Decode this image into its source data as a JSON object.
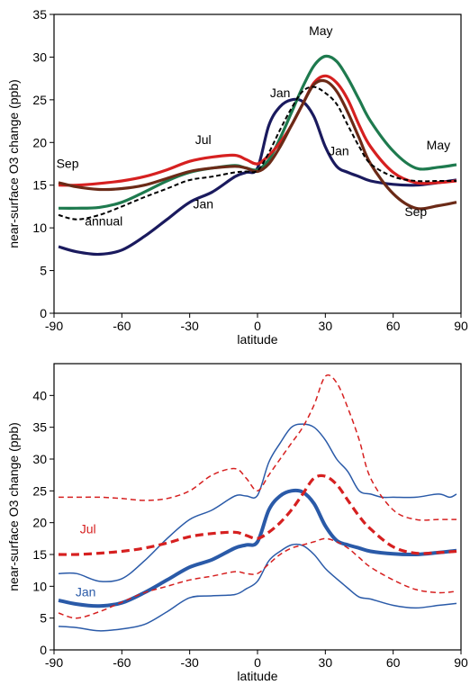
{
  "chart_data": [
    {
      "type": "line",
      "xlabel": "latitude",
      "ylabel": "near-surface O3 change  (ppb)",
      "xlim": [
        -90,
        90
      ],
      "ylim": [
        0,
        35
      ],
      "xticks": [
        "-90",
        "-60",
        "-30",
        "0",
        "30",
        "60",
        "90"
      ],
      "yticks": [
        "0",
        "5",
        "10",
        "15",
        "20",
        "25",
        "30",
        "35"
      ],
      "grid": false,
      "series": [
        {
          "color": "#1a1a5e",
          "width": 3.2,
          "dash": "",
          "x": [
            -88,
            -80,
            -70,
            -60,
            -50,
            -40,
            -30,
            -20,
            -10,
            -5,
            0,
            5,
            10,
            15,
            20,
            25,
            30,
            35,
            40,
            45,
            50,
            60,
            70,
            80,
            88
          ],
          "y": [
            7.8,
            7.2,
            6.9,
            7.4,
            9.0,
            11.0,
            13.0,
            14.2,
            16.0,
            16.5,
            17.0,
            22.0,
            24.2,
            25.0,
            24.8,
            23.0,
            19.5,
            17.2,
            16.5,
            16.0,
            15.5,
            15.1,
            15.0,
            15.3,
            15.6
          ]
        },
        {
          "color": "#1e7a4e",
          "width": 3.2,
          "dash": "",
          "x": [
            -88,
            -80,
            -70,
            -60,
            -50,
            -40,
            -30,
            -20,
            -10,
            -5,
            0,
            5,
            10,
            15,
            20,
            25,
            30,
            35,
            40,
            45,
            50,
            60,
            70,
            80,
            88
          ],
          "y": [
            12.3,
            12.3,
            12.4,
            13.0,
            14.2,
            15.5,
            16.5,
            17.0,
            17.3,
            17.0,
            16.8,
            18.0,
            20.5,
            23.5,
            26.5,
            29.0,
            30.1,
            29.5,
            27.5,
            25.0,
            22.5,
            19.0,
            17.0,
            17.1,
            17.4
          ]
        },
        {
          "color": "#d62020",
          "width": 3.2,
          "dash": "",
          "x": [
            -88,
            -80,
            -70,
            -60,
            -50,
            -40,
            -30,
            -20,
            -10,
            -5,
            0,
            5,
            10,
            15,
            20,
            25,
            30,
            35,
            40,
            45,
            50,
            60,
            70,
            80,
            88
          ],
          "y": [
            15.0,
            15.0,
            15.2,
            15.5,
            16.0,
            16.8,
            17.8,
            18.3,
            18.5,
            18.0,
            17.5,
            18.5,
            20.0,
            22.0,
            24.5,
            27.0,
            27.8,
            27.0,
            25.0,
            22.0,
            19.5,
            16.5,
            15.3,
            15.3,
            15.5
          ]
        },
        {
          "color": "#6b2a17",
          "width": 3.2,
          "dash": "",
          "x": [
            -88,
            -80,
            -70,
            -60,
            -50,
            -40,
            -30,
            -20,
            -10,
            -5,
            0,
            5,
            10,
            15,
            20,
            25,
            30,
            35,
            40,
            45,
            50,
            60,
            70,
            80,
            88
          ],
          "y": [
            15.3,
            14.8,
            14.5,
            14.6,
            15.0,
            15.8,
            16.6,
            17.0,
            17.2,
            17.0,
            16.6,
            17.5,
            19.5,
            22.0,
            24.5,
            26.8,
            27.2,
            26.0,
            23.5,
            20.5,
            17.5,
            14.0,
            12.3,
            12.6,
            13.0
          ]
        },
        {
          "name": "annual",
          "color": "#000000",
          "width": 2.0,
          "dash": "5,3",
          "x": [
            -88,
            -80,
            -70,
            -60,
            -50,
            -40,
            -30,
            -20,
            -10,
            -5,
            0,
            5,
            10,
            15,
            20,
            25,
            30,
            35,
            40,
            45,
            50,
            60,
            70,
            80,
            88
          ],
          "y": [
            11.5,
            11.0,
            11.5,
            12.5,
            13.6,
            14.6,
            15.6,
            16.0,
            16.5,
            16.6,
            16.7,
            18.8,
            21.5,
            24.0,
            26.0,
            26.5,
            25.8,
            24.5,
            22.0,
            19.5,
            17.5,
            16.0,
            15.5,
            15.5,
            15.5
          ]
        }
      ],
      "annotations": [
        {
          "text": "Sep",
          "x": -84,
          "y": 17.0,
          "color": "#000000"
        },
        {
          "text": "annual",
          "x": -68,
          "y": 10.3,
          "color": "#000000"
        },
        {
          "text": "Jul",
          "x": -24,
          "y": 19.8,
          "color": "#000000"
        },
        {
          "text": "Jan",
          "x": -24,
          "y": 12.3,
          "color": "#000000"
        },
        {
          "text": "Jan",
          "x": 10,
          "y": 25.3,
          "color": "#000000"
        },
        {
          "text": "May",
          "x": 28,
          "y": 32.6,
          "color": "#000000"
        },
        {
          "text": "Jan",
          "x": 36,
          "y": 18.5,
          "color": "#000000"
        },
        {
          "text": "May",
          "x": 80,
          "y": 19.2,
          "color": "#000000"
        },
        {
          "text": "Sep",
          "x": 70,
          "y": 11.4,
          "color": "#000000"
        }
      ]
    },
    {
      "type": "line",
      "xlabel": "latitude",
      "ylabel": "near-surface O3 change  (ppb)",
      "xlim": [
        -90,
        90
      ],
      "ylim": [
        0,
        45
      ],
      "xticks": [
        "-90",
        "-60",
        "-30",
        "0",
        "30",
        "60",
        "90"
      ],
      "yticks": [
        "0",
        "5",
        "10",
        "15",
        "20",
        "25",
        "30",
        "35",
        "40"
      ],
      "grid": false,
      "series": [
        {
          "color": "#2a5aa8",
          "width": 4.0,
          "dash": "",
          "x": [
            -88,
            -80,
            -70,
            -60,
            -50,
            -40,
            -30,
            -20,
            -10,
            -5,
            0,
            5,
            10,
            15,
            20,
            25,
            30,
            35,
            40,
            45,
            50,
            60,
            70,
            80,
            88
          ],
          "y": [
            7.8,
            7.2,
            6.9,
            7.4,
            9.0,
            11.0,
            13.0,
            14.2,
            16.0,
            16.5,
            17.0,
            22.0,
            24.2,
            25.0,
            24.8,
            23.0,
            19.5,
            17.2,
            16.5,
            16.0,
            15.5,
            15.1,
            15.0,
            15.3,
            15.6
          ]
        },
        {
          "color": "#2a5aa8",
          "width": 1.5,
          "dash": "",
          "x": [
            -88,
            -80,
            -70,
            -60,
            -50,
            -40,
            -30,
            -20,
            -10,
            -5,
            0,
            5,
            10,
            15,
            20,
            25,
            30,
            35,
            40,
            45,
            50,
            55,
            60,
            70,
            80,
            85,
            88
          ],
          "y": [
            12.0,
            12.0,
            10.8,
            11.2,
            14.0,
            17.5,
            20.5,
            22.0,
            24.2,
            24.2,
            24.3,
            29.5,
            32.5,
            35.0,
            35.5,
            35.0,
            33.0,
            30.0,
            28.0,
            25.0,
            24.5,
            24.0,
            24.0,
            24.0,
            24.5,
            24.0,
            24.5
          ]
        },
        {
          "color": "#2a5aa8",
          "width": 1.5,
          "dash": "",
          "x": [
            -88,
            -80,
            -70,
            -60,
            -50,
            -40,
            -30,
            -20,
            -10,
            -5,
            0,
            5,
            10,
            15,
            20,
            25,
            30,
            35,
            40,
            45,
            50,
            60,
            70,
            80,
            88
          ],
          "y": [
            3.7,
            3.5,
            3.0,
            3.3,
            4.0,
            6.0,
            8.2,
            8.5,
            8.7,
            9.6,
            10.8,
            14.0,
            15.5,
            16.5,
            16.4,
            15.0,
            12.8,
            11.2,
            9.7,
            8.3,
            8.0,
            7.0,
            6.6,
            7.0,
            7.3
          ]
        },
        {
          "color": "#d62020",
          "width": 3.2,
          "dash": "9,5",
          "x": [
            -88,
            -80,
            -70,
            -60,
            -50,
            -40,
            -30,
            -20,
            -10,
            -5,
            0,
            5,
            10,
            15,
            20,
            25,
            30,
            35,
            40,
            45,
            50,
            60,
            70,
            80,
            88
          ],
          "y": [
            15.0,
            15.0,
            15.2,
            15.5,
            16.0,
            16.8,
            17.8,
            18.3,
            18.5,
            18.0,
            17.5,
            18.5,
            20.0,
            22.0,
            24.5,
            27.0,
            27.3,
            26.0,
            23.5,
            21.0,
            19.0,
            16.2,
            15.2,
            15.3,
            15.5
          ]
        },
        {
          "color": "#d62020",
          "width": 1.5,
          "dash": "6,4",
          "x": [
            -88,
            -80,
            -70,
            -60,
            -50,
            -40,
            -30,
            -20,
            -10,
            -5,
            0,
            5,
            10,
            15,
            20,
            25,
            30,
            35,
            40,
            45,
            50,
            60,
            70,
            80,
            88
          ],
          "y": [
            24.0,
            24.0,
            24.0,
            23.8,
            23.5,
            23.8,
            25.0,
            27.5,
            28.5,
            27.0,
            25.0,
            27.5,
            30.0,
            32.5,
            35.0,
            38.5,
            43.0,
            42.0,
            38.0,
            33.0,
            27.0,
            22.0,
            20.5,
            20.5,
            20.5
          ]
        },
        {
          "color": "#d62020",
          "width": 1.5,
          "dash": "6,4",
          "x": [
            -88,
            -80,
            -70,
            -60,
            -50,
            -40,
            -30,
            -20,
            -10,
            -5,
            0,
            5,
            10,
            15,
            20,
            25,
            30,
            35,
            40,
            45,
            50,
            60,
            70,
            80,
            88
          ],
          "y": [
            5.8,
            5.0,
            6.0,
            7.5,
            9.0,
            10.0,
            11.0,
            11.6,
            12.3,
            12.0,
            12.0,
            13.5,
            15.0,
            16.0,
            16.5,
            17.0,
            17.5,
            17.0,
            16.0,
            14.5,
            13.0,
            11.0,
            9.5,
            9.0,
            9.2
          ]
        }
      ],
      "annotations": [
        {
          "text": "Jul",
          "x": -75,
          "y": 18.3,
          "color": "#d62020"
        },
        {
          "text": "Jan",
          "x": -76,
          "y": 8.4,
          "color": "#2a5aa8"
        }
      ]
    }
  ]
}
